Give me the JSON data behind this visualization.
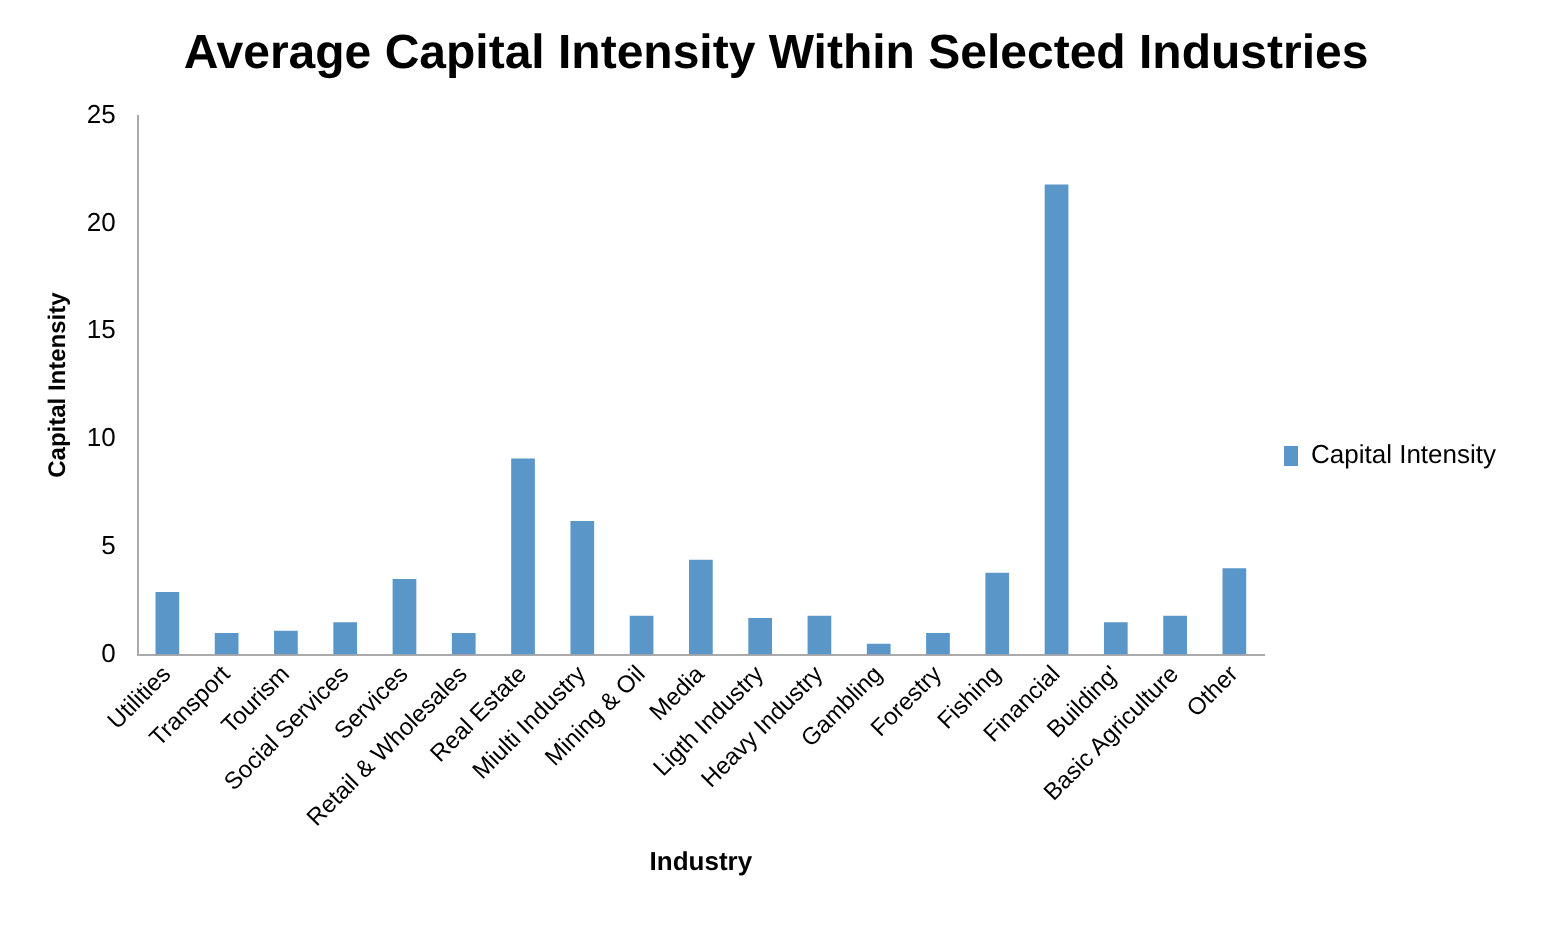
{
  "chart_data": {
    "type": "bar",
    "title": "Average Capital Intensity Within Selected Industries",
    "xlabel": "Industry",
    "ylabel": "Capital Intensity",
    "categories": [
      "Utilities",
      "Transport",
      "Tourism",
      "Social Services",
      "Services",
      "Retail & Wholesales",
      "Real Estate",
      "Miulti Industry",
      "Mining & Oil",
      "Media",
      "Ligth Industry",
      "Heavy Industry",
      "Gambling",
      "Forestry",
      "Fishing",
      "Financial",
      "Building'",
      "Basic Agriculture",
      "Other"
    ],
    "series": [
      {
        "name": "Capital Intensity",
        "color": "#5b96c8",
        "values": [
          2.9,
          1.0,
          1.1,
          1.5,
          3.5,
          1.0,
          9.1,
          6.2,
          1.8,
          4.4,
          1.7,
          1.8,
          0.5,
          1.0,
          3.8,
          21.8,
          1.5,
          1.8,
          4.0
        ]
      }
    ],
    "ylim": [
      0,
      25
    ],
    "yticks": [
      0,
      5,
      10,
      15,
      20,
      25
    ],
    "grid": false,
    "legend": "right"
  }
}
